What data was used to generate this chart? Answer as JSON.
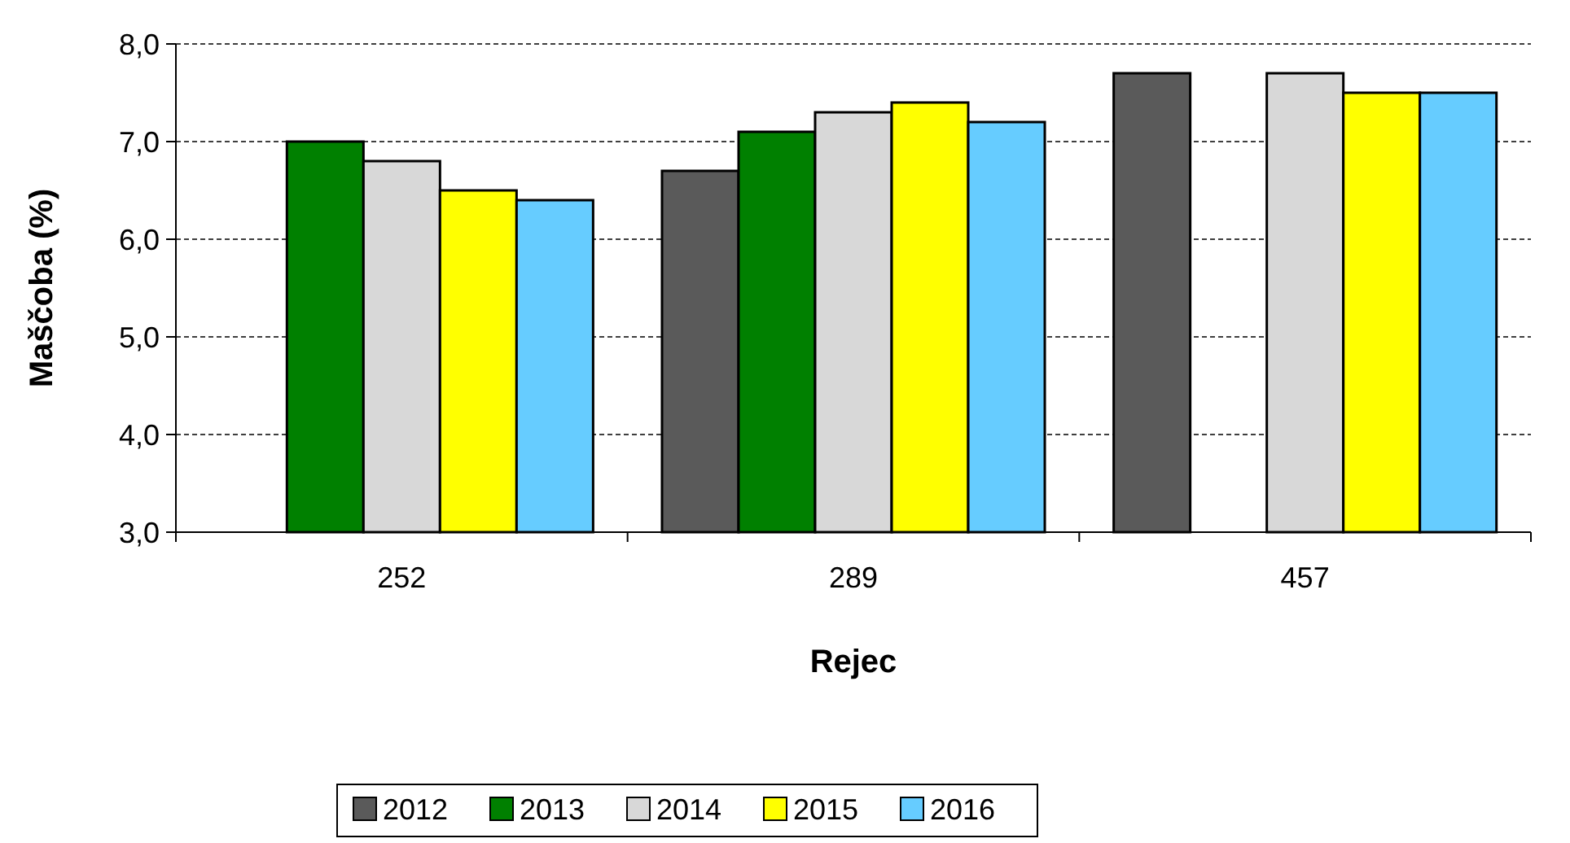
{
  "chart_data": {
    "type": "bar",
    "xlabel": "Rejec",
    "ylabel": "Maščoba (%)",
    "categories": [
      "252",
      "289",
      "457"
    ],
    "series": [
      {
        "name": "2012",
        "color": "#5a5a5a",
        "values": [
          null,
          6.7,
          7.7
        ]
      },
      {
        "name": "2013",
        "color": "#008000",
        "values": [
          7.0,
          7.1,
          null
        ]
      },
      {
        "name": "2014",
        "color": "#d8d8d8",
        "values": [
          6.8,
          7.3,
          7.7
        ]
      },
      {
        "name": "2015",
        "color": "#ffff00",
        "values": [
          6.5,
          7.4,
          7.5
        ]
      },
      {
        "name": "2016",
        "color": "#66ccff",
        "values": [
          6.4,
          7.2,
          7.5
        ]
      }
    ],
    "ylim": [
      3,
      8
    ],
    "yticks": [
      {
        "value": 3,
        "label": "3,0"
      },
      {
        "value": 4,
        "label": "4,0"
      },
      {
        "value": 5,
        "label": "5,0"
      },
      {
        "value": 6,
        "label": "6,0"
      },
      {
        "value": 7,
        "label": "7,0"
      },
      {
        "value": 8,
        "label": "8,0"
      }
    ],
    "grid": "y",
    "legend": "bottom"
  }
}
